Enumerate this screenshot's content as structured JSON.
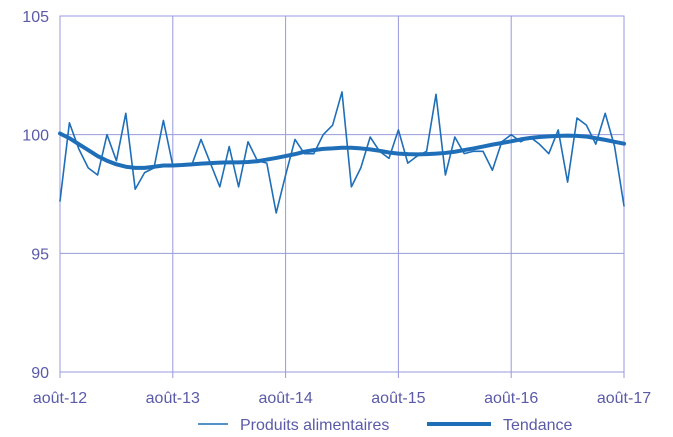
{
  "chart_data": {
    "type": "line",
    "title": "",
    "xlabel": "",
    "ylabel": "",
    "ylim": [
      90,
      105
    ],
    "yticks": [
      "90",
      "95",
      "100",
      "105"
    ],
    "x_tick_labels": [
      "août-12",
      "août-13",
      "août-14",
      "août-15",
      "août-16",
      "août-17"
    ],
    "x": [
      "2012-08",
      "2012-09",
      "2012-10",
      "2012-11",
      "2012-12",
      "2013-01",
      "2013-02",
      "2013-03",
      "2013-04",
      "2013-05",
      "2013-06",
      "2013-07",
      "2013-08",
      "2013-09",
      "2013-10",
      "2013-11",
      "2013-12",
      "2014-01",
      "2014-02",
      "2014-03",
      "2014-04",
      "2014-05",
      "2014-06",
      "2014-07",
      "2014-08",
      "2014-09",
      "2014-10",
      "2014-11",
      "2014-12",
      "2015-01",
      "2015-02",
      "2015-03",
      "2015-04",
      "2015-05",
      "2015-06",
      "2015-07",
      "2015-08",
      "2015-09",
      "2015-10",
      "2015-11",
      "2015-12",
      "2016-01",
      "2016-02",
      "2016-03",
      "2016-04",
      "2016-05",
      "2016-06",
      "2016-07",
      "2016-08",
      "2016-09",
      "2016-10",
      "2016-11",
      "2016-12",
      "2017-01",
      "2017-02",
      "2017-03",
      "2017-04",
      "2017-05",
      "2017-06",
      "2017-07",
      "2017-08"
    ],
    "grid": true,
    "legend_position": "bottom",
    "colors": {
      "series": "#1f6eb8",
      "grid": "#9999dd",
      "tick_text": "#5a5aa8"
    },
    "series": [
      {
        "name": "Produits alimentaires",
        "style": "thin",
        "values": [
          97.2,
          100.5,
          99.4,
          98.6,
          98.3,
          100.0,
          98.9,
          100.9,
          97.7,
          98.4,
          98.6,
          100.6,
          98.7,
          98.7,
          98.7,
          99.8,
          98.8,
          97.8,
          99.5,
          97.8,
          99.7,
          98.9,
          98.8,
          96.7,
          98.3,
          99.8,
          99.2,
          99.2,
          100.0,
          100.4,
          101.8,
          97.8,
          98.6,
          99.9,
          99.3,
          99.0,
          100.2,
          98.8,
          99.1,
          99.3,
          101.7,
          98.3,
          99.9,
          99.2,
          99.3,
          99.3,
          98.5,
          99.7,
          100.0,
          99.7,
          99.9,
          99.6,
          99.2,
          100.2,
          98.0,
          100.7,
          100.4,
          99.6,
          100.9,
          99.5,
          97.0
        ]
      },
      {
        "name": "Tendance",
        "style": "thick",
        "values": [
          100.05,
          99.85,
          99.6,
          99.35,
          99.1,
          98.9,
          98.75,
          98.65,
          98.6,
          98.6,
          98.65,
          98.7,
          98.7,
          98.72,
          98.75,
          98.78,
          98.8,
          98.82,
          98.83,
          98.83,
          98.85,
          98.88,
          98.95,
          99.02,
          99.1,
          99.18,
          99.28,
          99.35,
          99.4,
          99.42,
          99.45,
          99.45,
          99.42,
          99.38,
          99.32,
          99.25,
          99.2,
          99.18,
          99.17,
          99.18,
          99.2,
          99.23,
          99.28,
          99.35,
          99.42,
          99.5,
          99.58,
          99.65,
          99.72,
          99.8,
          99.86,
          99.9,
          99.93,
          99.95,
          99.96,
          99.95,
          99.92,
          99.85,
          99.78,
          99.7,
          99.62
        ]
      }
    ]
  }
}
